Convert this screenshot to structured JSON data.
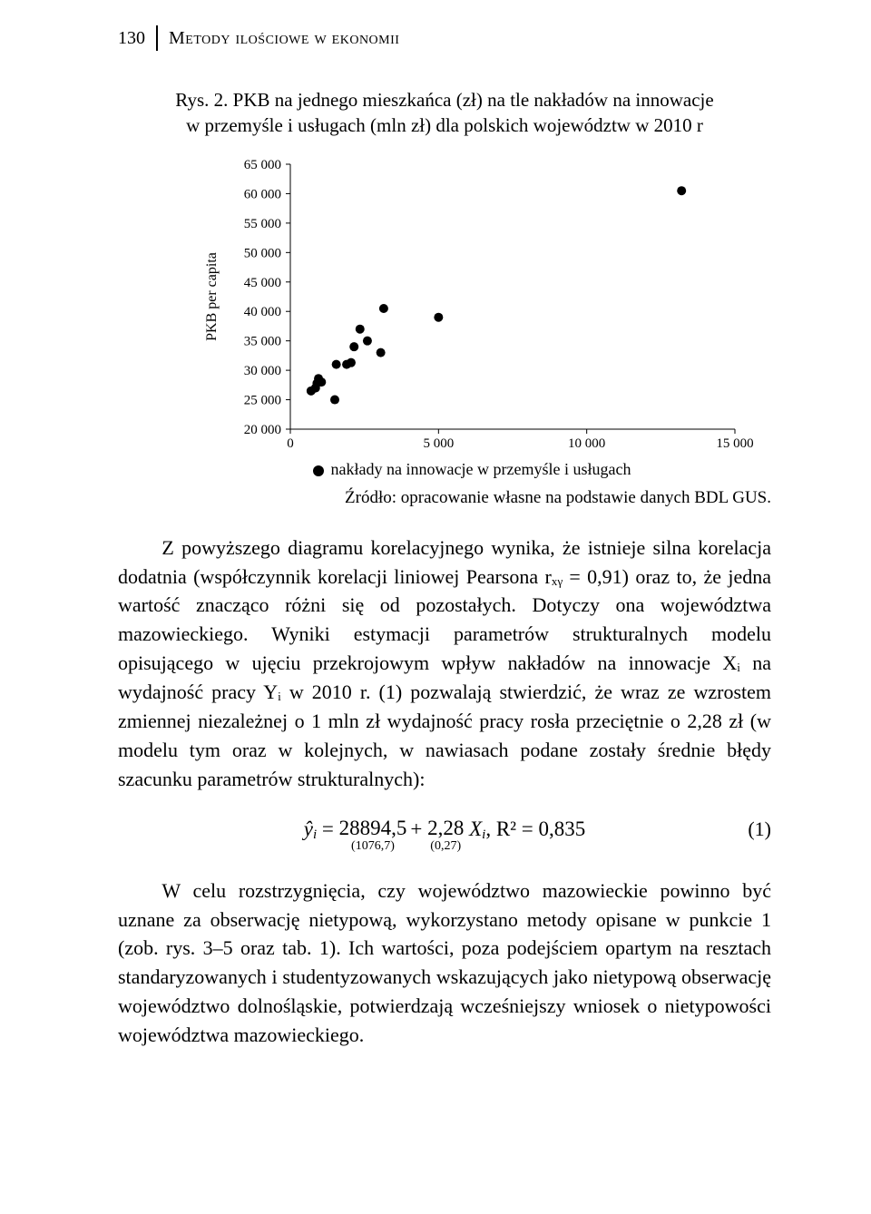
{
  "header": {
    "page_number": "130",
    "section_title": "Metody ilościowe w ekonomii"
  },
  "figure": {
    "label": "Rys. 2.",
    "title_line1": "PKB na jednego mieszkańca (zł) na tle nakładów na innowacje",
    "title_line2": "w przemyśle i usługach (mln zł) dla polskich województw w 2010 r"
  },
  "chart": {
    "type": "scatter",
    "x_label": "",
    "y_label": "PKB per capita",
    "xlim": [
      0,
      15000
    ],
    "ylim": [
      20000,
      65000
    ],
    "x_ticks": [
      0,
      5000,
      10000,
      15000
    ],
    "x_tick_labels": [
      "0",
      "5 000",
      "10 000",
      "15 000"
    ],
    "y_ticks": [
      20000,
      25000,
      30000,
      35000,
      40000,
      45000,
      50000,
      55000,
      60000,
      65000
    ],
    "y_tick_labels": [
      "20 000",
      "25 000",
      "30 000",
      "35 000",
      "40 000",
      "45 000",
      "50 000",
      "55 000",
      "60 000",
      "65 000"
    ],
    "marker": {
      "shape": "circle",
      "radius": 5,
      "fill": "#000000"
    },
    "label_fontsize": 16,
    "tick_fontsize": 15,
    "background_color": "#ffffff",
    "axis_color": "#000000",
    "legend_label": "nakłady na innowacje w przemyśle i usługach",
    "points": [
      {
        "x": 700,
        "y": 26500
      },
      {
        "x": 850,
        "y": 27000
      },
      {
        "x": 900,
        "y": 27800
      },
      {
        "x": 950,
        "y": 28600
      },
      {
        "x": 1050,
        "y": 28000
      },
      {
        "x": 1500,
        "y": 25000
      },
      {
        "x": 1550,
        "y": 31000
      },
      {
        "x": 1900,
        "y": 31000
      },
      {
        "x": 2050,
        "y": 31300
      },
      {
        "x": 2150,
        "y": 34000
      },
      {
        "x": 2350,
        "y": 37000
      },
      {
        "x": 2600,
        "y": 35000
      },
      {
        "x": 3050,
        "y": 33000
      },
      {
        "x": 3150,
        "y": 40500
      },
      {
        "x": 5000,
        "y": 39000
      },
      {
        "x": 13200,
        "y": 60500
      }
    ]
  },
  "source": "Źródło: opracowanie własne na podstawie danych BDL GUS.",
  "paragraphs": {
    "p1": "Z powyższego diagramu korelacyjnego wynika, że istnieje silna korelacja dodatnia (współczynnik korelacji liniowej Pearsona rₓᵧ = 0,91) oraz to, że jedna wartość znacząco różni się od pozostałych. Dotyczy ona województwa mazowieckiego. Wyniki estymacji parametrów strukturalnych modelu opisującego w ujęciu przekrojowym wpływ nakładów na innowacje Xᵢ na wydajność pracy Yᵢ w 2010 r. (1) pozwalają stwierdzić, że wraz ze wzrostem zmiennej niezależnej o 1 mln zł wydajność pracy rosła przeciętnie o 2,28 zł (w modelu tym oraz w kolejnych, w nawiasach podane zostały średnie błędy szacunku parametrów strukturalnych):",
    "p2": "W celu rozstrzygnięcia, czy województwo mazowieckie powinno być uznane za obserwację nietypową, wykorzystano metody opisane w punkcie 1 (zob. rys. 3–5 oraz tab. 1). Ich wartości, poza podejściem opartym na resztach standaryzowanych i studentyzowanych wskazujących jako nietypową obserwację województwo dolnośląskie, potwierdzają wcześniejszy wniosek o nietypowości województwa mazowieckiego."
  },
  "equation": {
    "yhat_prefix": "ŷ",
    "yhat_sub": "i",
    "equals": " = ",
    "term1": "28894,5",
    "term1_se": "(1076,7)",
    "plus": "+ ",
    "term2": "2,28",
    "term2_se": "(0,27)",
    "x_var": " X",
    "x_sub": "i",
    "r2_text": ", R² = 0,835",
    "number": "(1)"
  }
}
